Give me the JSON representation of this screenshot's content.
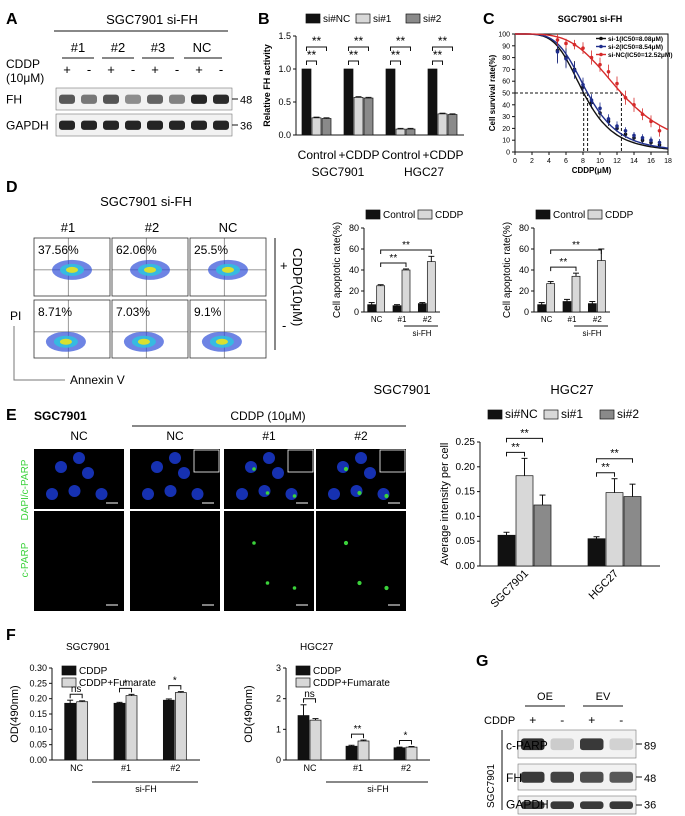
{
  "panel_letters": [
    "A",
    "B",
    "C",
    "D",
    "E",
    "F",
    "G"
  ],
  "colors": {
    "black": "#111111",
    "light": "#d8d8d8",
    "dark": "#8a8a8a",
    "blue": "#1f2e8c",
    "red": "#d62a2a",
    "green": "#3bd23b",
    "nucleus": "#1a3ad0"
  },
  "panel_a": {
    "title": "SGC7901  si-FH",
    "groups": [
      "#1",
      "#2",
      "#3",
      "NC"
    ],
    "cddp_label": "CDDP",
    "cddp_dose": "(10μM)",
    "signs": [
      "+",
      "-",
      "+",
      "-",
      "+",
      "-",
      "+",
      "-"
    ],
    "rows": [
      {
        "label": "FH",
        "kda": "48",
        "intensity": [
          0.7,
          0.55,
          0.72,
          0.45,
          0.65,
          0.5,
          0.95,
          0.92
        ]
      },
      {
        "label": "GAPDH",
        "kda": "36",
        "intensity": [
          0.95,
          0.95,
          0.95,
          0.95,
          0.95,
          0.95,
          0.95,
          0.95
        ]
      }
    ]
  },
  "chart_data": [
    {
      "id": "fh_activity",
      "type": "bar",
      "ylabel": "Relative FH activity",
      "ylim": [
        0,
        1.5
      ],
      "yticks": [
        "0.0",
        "0.5",
        "1.0",
        "1.5"
      ],
      "categories": [
        "Control",
        "+CDDP",
        "Control",
        "+CDDP"
      ],
      "group_labels": [
        "SGC7901",
        "HGC27"
      ],
      "series": [
        {
          "name": "si#NC",
          "values": [
            1.0,
            1.0,
            1.0,
            1.0
          ],
          "err": [
            0.0,
            0.0,
            0.0,
            0.0
          ]
        },
        {
          "name": "si#1",
          "values": [
            0.26,
            0.57,
            0.09,
            0.32
          ],
          "err": [
            0.01,
            0.01,
            0.01,
            0.01
          ]
        },
        {
          "name": "si#2",
          "values": [
            0.25,
            0.56,
            0.09,
            0.31
          ],
          "err": [
            0.01,
            0.01,
            0.01,
            0.01
          ]
        }
      ],
      "sig": [
        "**",
        "**",
        "**",
        "**",
        "**",
        "**",
        "**",
        "**"
      ]
    },
    {
      "id": "survival",
      "type": "line",
      "title": "SGC7901 si-FH",
      "xlabel": "CDDP(μM)",
      "ylabel": "Cell survival rate(%)",
      "xlim": [
        0,
        18
      ],
      "ylim": [
        0,
        100
      ],
      "xticks": [
        "0",
        "2",
        "4",
        "6",
        "8",
        "10",
        "12",
        "14",
        "16",
        "18"
      ],
      "yticks": [
        "0",
        "10",
        "20",
        "30",
        "40",
        "50",
        "60",
        "70",
        "80",
        "90",
        "100"
      ],
      "x": [
        5,
        6,
        7,
        8,
        9,
        10,
        11,
        12,
        13,
        14,
        15,
        16,
        17
      ],
      "series": [
        {
          "name": "si-1(IC50=8.08μM)",
          "ic50": 8.08,
          "values": [
            86,
            80,
            70,
            55,
            42,
            33,
            26,
            20,
            15,
            12,
            10,
            8,
            6
          ],
          "err": [
            10,
            8,
            7,
            6,
            5,
            4,
            4,
            3,
            3,
            3,
            3,
            3,
            3
          ]
        },
        {
          "name": "si-2(IC50=8.54μM)",
          "ic50": 8.54,
          "values": [
            85,
            79,
            69,
            57,
            44,
            37,
            28,
            22,
            18,
            14,
            12,
            10,
            8
          ],
          "err": [
            10,
            8,
            7,
            6,
            5,
            5,
            4,
            4,
            3,
            3,
            3,
            3,
            3
          ]
        },
        {
          "name": "si-NC(IC50=12.52μM)",
          "ic50": 12.52,
          "values": [
            95,
            92,
            91,
            88,
            80,
            74,
            68,
            58,
            46,
            40,
            32,
            26,
            18
          ],
          "err": [
            5,
            4,
            4,
            5,
            6,
            6,
            6,
            6,
            6,
            6,
            5,
            5,
            5
          ]
        }
      ]
    },
    {
      "id": "apop_sgc",
      "type": "bar",
      "ylabel": "Cell apoptotic rate(%)",
      "ylim": [
        0,
        80
      ],
      "yticks": [
        "0",
        "20",
        "40",
        "60",
        "80"
      ],
      "categories": [
        "NC",
        "#1",
        "#2"
      ],
      "xgroup_label": "si-FH",
      "caption": "SGC7901",
      "series": [
        {
          "name": "Control",
          "values": [
            7,
            6,
            8
          ],
          "err": [
            2,
            1,
            1
          ]
        },
        {
          "name": "CDDP",
          "values": [
            25,
            40,
            48
          ],
          "err": [
            1,
            1,
            5
          ]
        }
      ],
      "sig": [
        "**",
        "**"
      ]
    },
    {
      "id": "apop_hgc",
      "type": "bar",
      "ylabel": "Cell apoptotic rate(%)",
      "ylim": [
        0,
        80
      ],
      "yticks": [
        "0",
        "20",
        "40",
        "60",
        "80"
      ],
      "categories": [
        "NC",
        "#1",
        "#2"
      ],
      "xgroup_label": "si-FH",
      "caption": "HGC27",
      "series": [
        {
          "name": "Control",
          "values": [
            7,
            10,
            8
          ],
          "err": [
            2,
            2,
            2
          ]
        },
        {
          "name": "CDDP",
          "values": [
            27,
            34,
            49
          ],
          "err": [
            2,
            3,
            11
          ]
        }
      ],
      "sig": [
        "**",
        "**"
      ]
    },
    {
      "id": "intensity",
      "type": "bar",
      "ylabel": "Average intensity per cell",
      "ylim": [
        0,
        0.25
      ],
      "yticks": [
        "0.00",
        "0.05",
        "0.10",
        "0.15",
        "0.20",
        "0.25"
      ],
      "categories": [
        "SGC7901",
        "HGC27"
      ],
      "series": [
        {
          "name": "si#NC",
          "values": [
            0.062,
            0.055
          ],
          "err": [
            0.006,
            0.004
          ]
        },
        {
          "name": "si#1",
          "values": [
            0.182,
            0.148
          ],
          "err": [
            0.035,
            0.028
          ]
        },
        {
          "name": "si#2",
          "values": [
            0.123,
            0.14
          ],
          "err": [
            0.02,
            0.025
          ]
        }
      ],
      "sig": [
        "**",
        "**",
        "**",
        "**"
      ]
    },
    {
      "id": "od_sgc",
      "type": "bar",
      "title": "SGC7901",
      "ylabel": "OD(490nm)",
      "ylim": [
        0,
        0.3
      ],
      "yticks": [
        "0.00",
        "0.05",
        "0.10",
        "0.15",
        "0.20",
        "0.25",
        "0.30"
      ],
      "categories": [
        "NC",
        "#1",
        "#2"
      ],
      "xgroup_label": "si-FH",
      "series": [
        {
          "name": "CDDP",
          "values": [
            0.185,
            0.185,
            0.195
          ],
          "err": [
            0.01,
            0.003,
            0.004
          ]
        },
        {
          "name": "CDDP+Fumarate",
          "values": [
            0.19,
            0.21,
            0.22
          ],
          "err": [
            0.003,
            0.004,
            0.003
          ]
        }
      ],
      "sig": [
        "ns",
        "*",
        "*"
      ]
    },
    {
      "id": "od_hgc",
      "type": "bar",
      "title": "HGC27",
      "ylabel": "OD(490nm)",
      "ylim": [
        0,
        3
      ],
      "yticks": [
        "0",
        "1",
        "2",
        "3"
      ],
      "categories": [
        "NC",
        "#1",
        "#2"
      ],
      "xgroup_label": "si-FH",
      "series": [
        {
          "name": "CDDP",
          "values": [
            1.45,
            0.45,
            0.4
          ],
          "err": [
            0.35,
            0.03,
            0.02
          ]
        },
        {
          "name": "CDDP+Fumarate",
          "values": [
            1.3,
            0.62,
            0.42
          ],
          "err": [
            0.05,
            0.03,
            0.02
          ]
        }
      ],
      "sig": [
        "ns",
        "**",
        "*"
      ]
    }
  ],
  "panel_d": {
    "title": "SGC7901  si-FH",
    "groups": [
      "#1",
      "#2",
      "NC"
    ],
    "top_values": [
      "37.56%",
      "62.06%",
      "25.5%"
    ],
    "bottom_values": [
      "8.71%",
      "7.03%",
      "9.1%"
    ],
    "side_label": "CDDP(10μM)",
    "signs": [
      "+",
      "-"
    ],
    "y_axis": "PI",
    "x_axis": "Annexin V"
  },
  "panel_e": {
    "cell_line": "SGC7901",
    "treatment": "CDDP (10μM)",
    "columns": [
      "NC",
      "NC",
      "#1",
      "#2"
    ],
    "row_labels": [
      "DAPI/c-PARP",
      "c-PARP"
    ]
  },
  "panel_g": {
    "groups": [
      "OE",
      "EV"
    ],
    "cddp_label": "CDDP",
    "signs": [
      "+",
      "-",
      "+",
      "-"
    ],
    "side_label": "SGC7901",
    "rows": [
      {
        "label": "c-PARP",
        "kda": "89",
        "intensity": [
          0.9,
          0.15,
          0.85,
          0.12
        ]
      },
      {
        "label": "FH",
        "kda": "48",
        "intensity": [
          0.85,
          0.8,
          0.75,
          0.7
        ]
      },
      {
        "label": "GAPDH",
        "kda": "36",
        "intensity": [
          0.85,
          0.85,
          0.85,
          0.85
        ]
      }
    ]
  }
}
